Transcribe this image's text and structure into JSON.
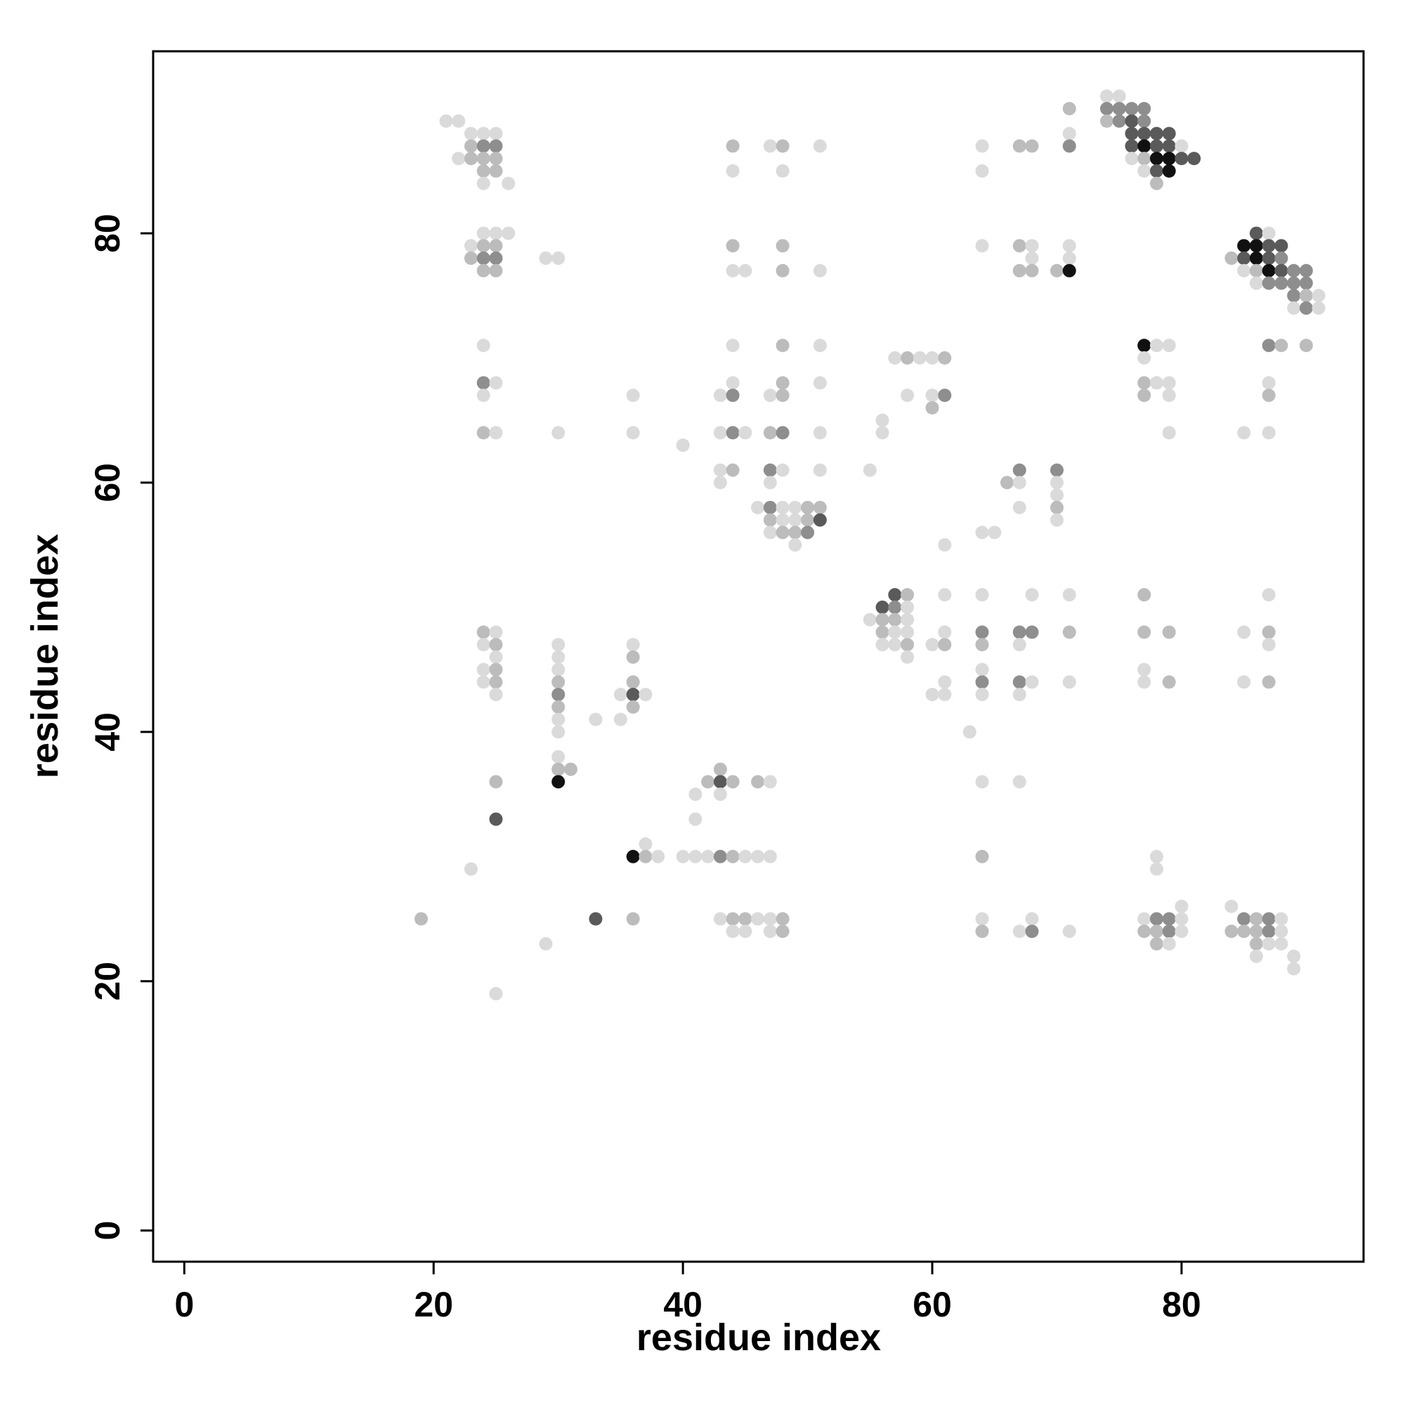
{
  "chart_data": {
    "type": "scatter",
    "xlabel": "residue index",
    "ylabel": "residue index",
    "xlim": [
      -2.5,
      94.6
    ],
    "ylim": [
      -2.5,
      94.6
    ],
    "xticks": [
      0,
      20,
      40,
      60,
      80
    ],
    "yticks": [
      0,
      20,
      40,
      60,
      80
    ],
    "colors": [
      "#dadada",
      "#bcbcbc",
      "#8e8e8e",
      "#5a5a5a",
      "#111111"
    ],
    "x": [
      74,
      75,
      71,
      74,
      75,
      76,
      77,
      21,
      22,
      74,
      75,
      76,
      77,
      23,
      24,
      25,
      71,
      76,
      77,
      78,
      79,
      23,
      24,
      25,
      44,
      47,
      48,
      51,
      64,
      67,
      68,
      71,
      76,
      77,
      78,
      79,
      80,
      22,
      23,
      24,
      25,
      76,
      77,
      78,
      79,
      80,
      81,
      24,
      25,
      44,
      48,
      64,
      77,
      78,
      79,
      24,
      26,
      78,
      24,
      25,
      26,
      86,
      87,
      23,
      24,
      25,
      44,
      48,
      64,
      67,
      68,
      71,
      85,
      86,
      87,
      88,
      23,
      24,
      25,
      29,
      30,
      68,
      71,
      84,
      85,
      86,
      87,
      88,
      24,
      25,
      44,
      45,
      48,
      51,
      67,
      68,
      70,
      71,
      85,
      86,
      87,
      88,
      89,
      90,
      86,
      87,
      88,
      89,
      90,
      89,
      90,
      91,
      89,
      90,
      91,
      24,
      44,
      48,
      51,
      77,
      78,
      79,
      87,
      88,
      90,
      57,
      58,
      59,
      60,
      61,
      77,
      24,
      25,
      44,
      48,
      51,
      77,
      78,
      79,
      87,
      24,
      36,
      43,
      44,
      47,
      48,
      58,
      60,
      61,
      77,
      79,
      87,
      60,
      56,
      24,
      25,
      30,
      36,
      43,
      44,
      45,
      47,
      48,
      51,
      56,
      79,
      85,
      87,
      40,
      43,
      44,
      47,
      48,
      51,
      55,
      67,
      70,
      43,
      47,
      66,
      67,
      70,
      70,
      46,
      47,
      48,
      49,
      50,
      51,
      67,
      70,
      47,
      48,
      49,
      50,
      51,
      70,
      47,
      48,
      49,
      50,
      64,
      65,
      49,
      61,
      57,
      58,
      61,
      64,
      68,
      71,
      77,
      87,
      56,
      57,
      58,
      55,
      56,
      57,
      58,
      24,
      25,
      56,
      57,
      58,
      61,
      64,
      67,
      68,
      71,
      77,
      79,
      85,
      87,
      24,
      25,
      30,
      36,
      56,
      57,
      58,
      60,
      61,
      64,
      67,
      87,
      25,
      30,
      36,
      58,
      24,
      25,
      30,
      64,
      77,
      24,
      25,
      30,
      36,
      61,
      64,
      67,
      68,
      71,
      77,
      79,
      85,
      87,
      25,
      30,
      35,
      36,
      37,
      60,
      61,
      64,
      67,
      30,
      36,
      30,
      33,
      35,
      30,
      63,
      30,
      30,
      31,
      43,
      25,
      30,
      42,
      43,
      44,
      46,
      47,
      64,
      67,
      41,
      43,
      25,
      41,
      37,
      36,
      37,
      38,
      40,
      41,
      42,
      43,
      44,
      45,
      46,
      47,
      64,
      78,
      23,
      78,
      80,
      84,
      19,
      33,
      36,
      43,
      44,
      45,
      46,
      47,
      48,
      64,
      68,
      77,
      78,
      79,
      80,
      85,
      86,
      87,
      88,
      44,
      45,
      47,
      48,
      64,
      67,
      68,
      71,
      77,
      78,
      79,
      80,
      84,
      85,
      86,
      87,
      88,
      29,
      78,
      79,
      86,
      87,
      88,
      86,
      89,
      89,
      25
    ],
    "y": [
      91,
      91,
      90,
      90,
      90,
      90,
      90,
      89,
      89,
      89,
      89,
      89,
      89,
      88,
      88,
      88,
      88,
      88,
      88,
      88,
      88,
      87,
      87,
      87,
      87,
      87,
      87,
      87,
      87,
      87,
      87,
      87,
      87,
      87,
      87,
      87,
      87,
      86,
      86,
      86,
      86,
      86,
      86,
      86,
      86,
      86,
      86,
      85,
      85,
      85,
      85,
      85,
      85,
      85,
      85,
      84,
      84,
      84,
      80,
      80,
      80,
      80,
      80,
      79,
      79,
      79,
      79,
      79,
      79,
      79,
      79,
      79,
      79,
      79,
      79,
      79,
      78,
      78,
      78,
      78,
      78,
      78,
      78,
      78,
      78,
      78,
      78,
      78,
      77,
      77,
      77,
      77,
      77,
      77,
      77,
      77,
      77,
      77,
      77,
      77,
      77,
      77,
      77,
      77,
      76,
      76,
      76,
      76,
      76,
      75,
      75,
      75,
      74,
      74,
      74,
      71,
      71,
      71,
      71,
      71,
      71,
      71,
      71,
      71,
      71,
      70,
      70,
      70,
      70,
      70,
      70,
      68,
      68,
      68,
      68,
      68,
      68,
      68,
      68,
      68,
      67,
      67,
      67,
      67,
      67,
      67,
      67,
      67,
      67,
      67,
      67,
      67,
      66,
      65,
      64,
      64,
      64,
      64,
      64,
      64,
      64,
      64,
      64,
      64,
      64,
      64,
      64,
      64,
      63,
      61,
      61,
      61,
      61,
      61,
      61,
      61,
      61,
      60,
      60,
      60,
      60,
      60,
      59,
      58,
      58,
      58,
      58,
      58,
      58,
      58,
      58,
      57,
      57,
      57,
      57,
      57,
      57,
      56,
      56,
      56,
      56,
      56,
      56,
      55,
      55,
      51,
      51,
      51,
      51,
      51,
      51,
      51,
      51,
      50,
      50,
      50,
      49,
      49,
      49,
      49,
      48,
      48,
      48,
      48,
      48,
      48,
      48,
      48,
      48,
      48,
      48,
      48,
      48,
      48,
      47,
      47,
      47,
      47,
      47,
      47,
      47,
      47,
      47,
      47,
      47,
      47,
      46,
      46,
      46,
      46,
      45,
      45,
      45,
      45,
      45,
      44,
      44,
      44,
      44,
      44,
      44,
      44,
      44,
      44,
      44,
      44,
      44,
      44,
      43,
      43,
      43,
      43,
      43,
      43,
      43,
      43,
      43,
      42,
      42,
      41,
      41,
      41,
      40,
      40,
      38,
      37,
      37,
      37,
      36,
      36,
      36,
      36,
      36,
      36,
      36,
      36,
      36,
      35,
      35,
      33,
      33,
      31,
      30,
      30,
      30,
      30,
      30,
      30,
      30,
      30,
      30,
      30,
      30,
      30,
      30,
      29,
      29,
      26,
      26,
      25,
      25,
      25,
      25,
      25,
      25,
      25,
      25,
      25,
      25,
      25,
      25,
      25,
      25,
      25,
      25,
      25,
      25,
      25,
      24,
      24,
      24,
      24,
      24,
      24,
      24,
      24,
      24,
      24,
      24,
      24,
      24,
      24,
      24,
      24,
      24,
      23,
      23,
      23,
      23,
      23,
      23,
      22,
      22,
      21,
      19
    ],
    "intensity": [
      1,
      1,
      2,
      3,
      3,
      3,
      3,
      1,
      1,
      2,
      3,
      4,
      3,
      1,
      1,
      1,
      1,
      4,
      4,
      4,
      4,
      2,
      3,
      3,
      2,
      1,
      2,
      1,
      1,
      2,
      2,
      3,
      4,
      5,
      4,
      4,
      1,
      1,
      2,
      2,
      2,
      1,
      2,
      5,
      5,
      4,
      4,
      2,
      2,
      1,
      1,
      1,
      1,
      4,
      5,
      1,
      1,
      2,
      1,
      1,
      1,
      4,
      1,
      1,
      2,
      2,
      2,
      2,
      1,
      2,
      1,
      1,
      5,
      5,
      4,
      4,
      2,
      3,
      3,
      1,
      1,
      1,
      1,
      2,
      4,
      5,
      4,
      3,
      2,
      2,
      1,
      1,
      2,
      1,
      2,
      2,
      2,
      5,
      1,
      2,
      5,
      4,
      3,
      3,
      1,
      3,
      3,
      3,
      3,
      3,
      2,
      1,
      1,
      3,
      1,
      1,
      1,
      2,
      1,
      5,
      1,
      1,
      3,
      2,
      2,
      1,
      2,
      1,
      1,
      2,
      1,
      3,
      1,
      1,
      2,
      1,
      2,
      1,
      1,
      1,
      1,
      1,
      1,
      3,
      1,
      2,
      1,
      1,
      3,
      2,
      1,
      2,
      2,
      1,
      2,
      1,
      1,
      1,
      1,
      3,
      1,
      2,
      3,
      1,
      1,
      1,
      1,
      1,
      1,
      1,
      2,
      3,
      1,
      1,
      1,
      3,
      3,
      1,
      1,
      2,
      1,
      1,
      1,
      1,
      3,
      1,
      1,
      2,
      2,
      1,
      2,
      2,
      1,
      1,
      2,
      4,
      1,
      1,
      2,
      2,
      3,
      1,
      1,
      1,
      1,
      4,
      2,
      1,
      1,
      1,
      1,
      2,
      1,
      4,
      3,
      1,
      1,
      2,
      2,
      1,
      2,
      1,
      2,
      1,
      1,
      1,
      3,
      3,
      3,
      2,
      2,
      2,
      1,
      2,
      1,
      2,
      1,
      1,
      1,
      1,
      2,
      1,
      2,
      2,
      1,
      1,
      1,
      1,
      2,
      1,
      1,
      2,
      1,
      1,
      1,
      1,
      2,
      2,
      2,
      1,
      3,
      3,
      1,
      1,
      1,
      2,
      1,
      2,
      1,
      3,
      1,
      4,
      1,
      1,
      1,
      1,
      1,
      2,
      2,
      1,
      1,
      1,
      1,
      1,
      1,
      2,
      2,
      2,
      2,
      5,
      2,
      4,
      2,
      2,
      1,
      1,
      1,
      1,
      1,
      4,
      1,
      1,
      5,
      2,
      1,
      1,
      1,
      1,
      3,
      2,
      1,
      1,
      1,
      2,
      1,
      1,
      1,
      1,
      1,
      2,
      4,
      2,
      1,
      2,
      2,
      1,
      1,
      2,
      1,
      1,
      1,
      3,
      3,
      1,
      3,
      2,
      3,
      1,
      1,
      1,
      1,
      2,
      2,
      1,
      3,
      1,
      2,
      2,
      3,
      1,
      2,
      2,
      2,
      3,
      1,
      1,
      2,
      1,
      2,
      1,
      1,
      1,
      1,
      1,
      1
    ]
  }
}
